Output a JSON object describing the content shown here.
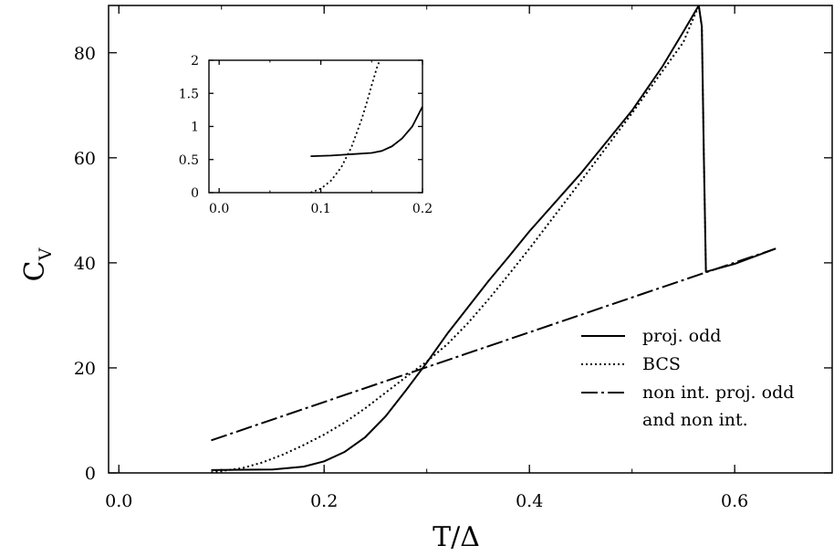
{
  "chart_data": [
    {
      "type": "line",
      "xlabel": "T/Δ",
      "ylabel_main": "C",
      "ylabel_sub": "V",
      "xlim": [
        -0.01,
        0.695
      ],
      "ylim": [
        0,
        89
      ],
      "xticks": [
        0.0,
        0.2,
        0.4,
        0.6
      ],
      "xtick_labels": [
        "0.0",
        "0.2",
        "0.4",
        "0.6"
      ],
      "yticks": [
        0,
        20,
        40,
        60,
        80
      ],
      "ytick_labels": [
        "0",
        "20",
        "40",
        "60",
        "80"
      ],
      "legend": {
        "position": "right"
      },
      "series": [
        {
          "name": "proj. odd",
          "style": "solid",
          "x": [
            0.09,
            0.15,
            0.18,
            0.2,
            0.22,
            0.24,
            0.26,
            0.28,
            0.3,
            0.32,
            0.34,
            0.36,
            0.38,
            0.4,
            0.45,
            0.5,
            0.53,
            0.55,
            0.565,
            0.568,
            0.57,
            0.572,
            0.6,
            0.64
          ],
          "y": [
            0.55,
            0.65,
            1.2,
            2.2,
            4.0,
            6.8,
            10.8,
            15.8,
            21.0,
            26.5,
            31.5,
            36.5,
            41.2,
            46.0,
            57.0,
            69.0,
            77.5,
            84.0,
            89.0,
            85.0,
            60.0,
            38.3,
            39.8,
            42.7
          ]
        },
        {
          "name": "BCS",
          "style": "dotted",
          "x": [
            0.09,
            0.12,
            0.14,
            0.16,
            0.18,
            0.2,
            0.22,
            0.24,
            0.26,
            0.28,
            0.3,
            0.32,
            0.34,
            0.36,
            0.38,
            0.4,
            0.45,
            0.5,
            0.55,
            0.565,
            0.568,
            0.57,
            0.572
          ],
          "y": [
            0.1,
            0.9,
            2.0,
            3.5,
            5.3,
            7.3,
            9.6,
            12.3,
            15.3,
            18.3,
            21.2,
            24.5,
            28.5,
            33.0,
            37.8,
            42.7,
            55.5,
            68.5,
            82.0,
            89.0,
            85.0,
            60.0,
            38.3
          ]
        },
        {
          "name": "non int. proj. odd",
          "name2": "and non int.",
          "style": "dashdot",
          "x": [
            0.09,
            0.64
          ],
          "y": [
            6.2,
            42.7
          ]
        }
      ]
    },
    {
      "type": "line",
      "role": "inset",
      "xlim": [
        -0.01,
        0.2
      ],
      "ylim": [
        0,
        2
      ],
      "xticks": [
        0.0,
        0.1,
        0.2
      ],
      "xtick_labels": [
        "0.0",
        "0.1",
        "0.2"
      ],
      "yticks": [
        0,
        0.5,
        1,
        1.5,
        2
      ],
      "ytick_labels": [
        "0",
        "0.5",
        "1",
        "1.5",
        "2"
      ],
      "series": [
        {
          "style": "solid",
          "x": [
            0.09,
            0.11,
            0.13,
            0.15,
            0.16,
            0.17,
            0.18,
            0.19,
            0.2
          ],
          "y": [
            0.55,
            0.56,
            0.58,
            0.6,
            0.63,
            0.7,
            0.82,
            1.0,
            1.3
          ]
        },
        {
          "style": "dotted",
          "x": [
            0.09,
            0.1,
            0.11,
            0.12,
            0.13,
            0.14,
            0.145,
            0.15,
            0.155,
            0.158
          ],
          "y": [
            0.0,
            0.06,
            0.18,
            0.38,
            0.68,
            1.1,
            1.35,
            1.62,
            1.88,
            2.0
          ]
        }
      ]
    }
  ]
}
